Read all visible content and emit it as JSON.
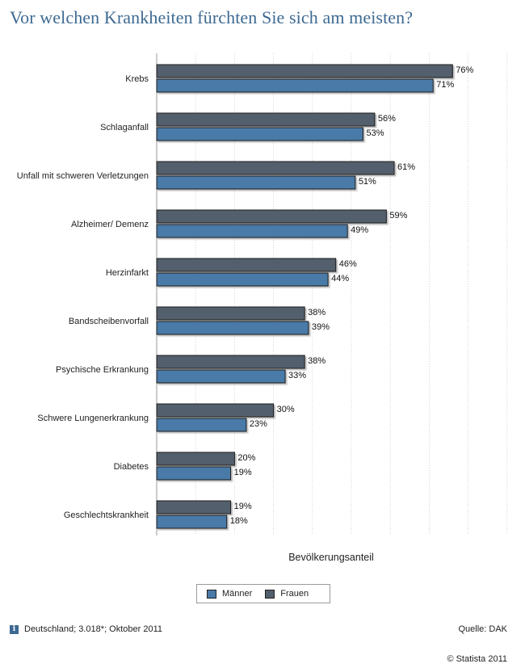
{
  "title": "Vor welchen Krankheiten fürchten Sie sich am meisten?",
  "colors": {
    "maenner": "#4a7aa8",
    "frauen": "#525f6c",
    "title": "#3d6a92",
    "grid": "#d2d2d2"
  },
  "chart_data": {
    "type": "bar",
    "orientation": "horizontal",
    "categories": [
      "Krebs",
      "Schlaganfall",
      "Unfall mit schweren Verletzungen",
      "Alzheimer/ Demenz",
      "Herzinfarkt",
      "Bandscheibenvorfall",
      "Psychische Erkrankung",
      "Schwere Lungenerkrankung",
      "Diabetes",
      "Geschlechtskrankheit"
    ],
    "series": [
      {
        "name": "Frauen",
        "values": [
          76,
          56,
          61,
          59,
          46,
          38,
          38,
          30,
          20,
          19
        ]
      },
      {
        "name": "Männer",
        "values": [
          71,
          53,
          51,
          49,
          44,
          39,
          33,
          23,
          19,
          18
        ]
      }
    ],
    "value_suffix": "%",
    "xlabel": "Bevölkerungsanteil",
    "xlim": [
      0,
      90
    ],
    "grid": true,
    "legend_position": "bottom"
  },
  "legend": {
    "maenner": "Männer",
    "frauen": "Frauen"
  },
  "info_icon": "i",
  "footnote": "Deutschland; 3.018*; Oktober 2011",
  "source": "Quelle: DAK",
  "copyright": "© Statista 2011"
}
